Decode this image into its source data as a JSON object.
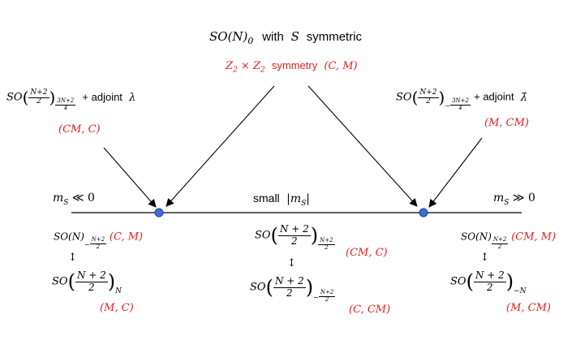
{
  "top": {
    "title_prefix": "SO(N)",
    "title_sub": "0",
    "title_with": "with",
    "title_S": "S",
    "title_symmetric": "symmetric",
    "symmetry_lhs": "Z",
    "symmetry_sub1": "2",
    "symmetry_times": "×",
    "symmetry_sub2": "2",
    "symmetry_word": "symmetry",
    "symmetry_pair": "(C, M)"
  },
  "left_top": {
    "so": "SO",
    "frac_num": "N+2",
    "frac_den": "2",
    "level_num": "3N+2",
    "level_den": "4",
    "adjoint_text": "+ adjoint",
    "adjoint_symbol": "λ",
    "pair": "(CM, C)"
  },
  "right_top": {
    "so": "SO",
    "frac_num": "N+2",
    "frac_den": "2",
    "level_sign": "−",
    "level_num": "3N+2",
    "level_den": "4",
    "adjoint_text": "+ adjoint",
    "adjoint_symbol": "λ̂",
    "pair": "(M, CM)"
  },
  "axis": {
    "left_label": "m",
    "left_sub": "S",
    "left_rel": "≪ 0",
    "mid_label": "small",
    "mid_abs": "|m",
    "mid_sub": "S",
    "mid_close": "|",
    "right_label": "m",
    "right_sub": "S",
    "right_rel": "≫ 0"
  },
  "bottom_left": {
    "line1_so": "SO(N)",
    "line1_level_sign": "−",
    "line1_level_num": "N+2",
    "line1_level_den": "2",
    "line1_pair": "(C, M)",
    "arrow": "↕",
    "line2_so": "SO",
    "line2_num": "N + 2",
    "line2_den": "2",
    "line2_level": "N",
    "line2_pair": "(M, C)"
  },
  "bottom_mid": {
    "line1_so": "SO",
    "line1_num": "N + 2",
    "line1_den": "2",
    "line1_level_num": "N+2",
    "line1_level_den": "2",
    "line1_pair": "(CM, C)",
    "arrow": "↕",
    "line2_so": "SO",
    "line2_num": "N + 2",
    "line2_den": "2",
    "line2_level_sign": "−",
    "line2_level_num": "N+2",
    "line2_level_den": "2",
    "line2_pair": "(C, CM)"
  },
  "bottom_right": {
    "line1_so": "SO(N)",
    "line1_level_num": "N+2",
    "line1_level_den": "2",
    "line1_pair": "(CM, M)",
    "arrow": "↕",
    "line2_so": "SO",
    "line2_num": "N + 2",
    "line2_den": "2",
    "line2_level": "−N",
    "line2_pair": "(M, CM)"
  },
  "colors": {
    "accent": "#e8201f",
    "dot": "#3a6fd8",
    "dot_stroke": "#1f3f8a",
    "line": "#000000"
  }
}
